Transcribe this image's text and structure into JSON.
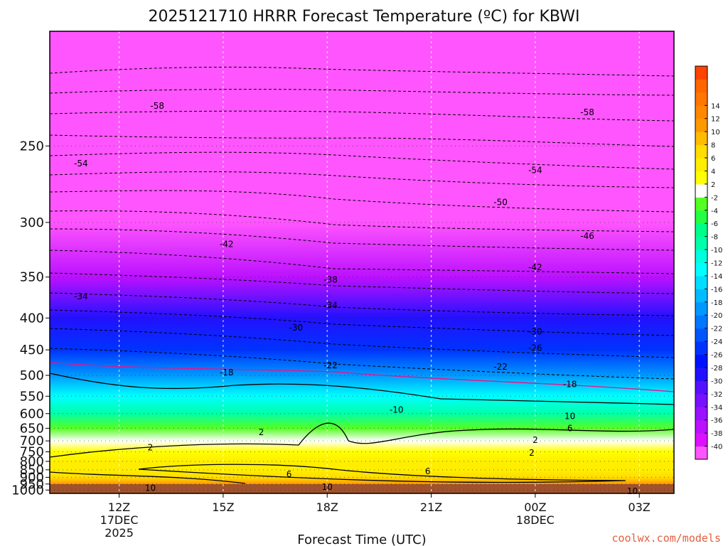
{
  "chart_data": {
    "type": "heatmap",
    "title": "2025121710 HRRR Forecast Temperature (ºC) for KBWI",
    "xlabel": "Forecast Time (UTC)",
    "ylabel": "",
    "credit": "coolwx.com/models",
    "x_ticks": [
      {
        "hour": 12,
        "label": "12Z",
        "sub1": "17DEC",
        "sub2": "2025"
      },
      {
        "hour": 15,
        "label": "15Z",
        "sub1": "",
        "sub2": ""
      },
      {
        "hour": 18,
        "label": "18Z",
        "sub1": "",
        "sub2": ""
      },
      {
        "hour": 21,
        "label": "21Z",
        "sub1": "",
        "sub2": ""
      },
      {
        "hour": 24,
        "label": "00Z",
        "sub1": "18DEC",
        "sub2": ""
      },
      {
        "hour": 27,
        "label": "03Z",
        "sub1": "",
        "sub2": ""
      }
    ],
    "xlim": [
      10,
      28
    ],
    "ylim": [
      1030,
      200
    ],
    "y_ticks": [
      250,
      300,
      350,
      400,
      450,
      500,
      550,
      600,
      650,
      700,
      750,
      800,
      850,
      900,
      950,
      1000
    ],
    "pressure_profile": [
      {
        "p": 200,
        "t": -58
      },
      {
        "p": 250,
        "t": -55
      },
      {
        "p": 300,
        "t": -46
      },
      {
        "p": 350,
        "t": -37
      },
      {
        "p": 400,
        "t": -30
      },
      {
        "p": 450,
        "t": -25
      },
      {
        "p": 500,
        "t": -20
      },
      {
        "p": 550,
        "t": -14
      },
      {
        "p": 600,
        "t": -9
      },
      {
        "p": 650,
        "t": -3
      },
      {
        "p": 700,
        "t": 1.5
      },
      {
        "p": 750,
        "t": 3
      },
      {
        "p": 800,
        "t": 4
      },
      {
        "p": 850,
        "t": 5
      },
      {
        "p": 900,
        "t": 7
      },
      {
        "p": 950,
        "t": 10
      },
      {
        "p": 1000,
        "t": 11
      }
    ],
    "colorbar": {
      "colors": [
        "#ff55ff",
        "#dd11ff",
        "#bb11ff",
        "#9911ff",
        "#7711ff",
        "#5511ff",
        "#2211ff",
        "#0011ff",
        "#0033ff",
        "#0055ff",
        "#0077ff",
        "#0099ff",
        "#00bbff",
        "#00ddff",
        "#00ffff",
        "#00ffdd",
        "#00ffaa",
        "#00ff88",
        "#22ff44",
        "#55ff22",
        "#ffffff",
        "#ffff00",
        "#ffee00",
        "#ffdd00",
        "#ffbb00",
        "#ff9900",
        "#ff8800",
        "#ff7700",
        "#ff6600",
        "#ff4400"
      ],
      "labels": [
        "-40",
        "-38",
        "-36",
        "-34",
        "-32",
        "-30",
        "-28",
        "-26",
        "-24",
        "-22",
        "-20",
        "-18",
        "-16",
        "-14",
        "-12",
        "-10",
        "-8",
        "-6",
        "-4",
        "-2",
        "2",
        "4",
        "6",
        "8",
        "10",
        "12",
        "14"
      ]
    },
    "contour_labels": [
      {
        "hour": 13.1,
        "p": 230,
        "text": "-58"
      },
      {
        "hour": 25.5,
        "p": 233,
        "text": "-58"
      },
      {
        "hour": 10.9,
        "p": 260,
        "text": "-54"
      },
      {
        "hour": 24,
        "p": 264,
        "text": "-54"
      },
      {
        "hour": 23,
        "p": 285,
        "text": "-50"
      },
      {
        "hour": 15.1,
        "p": 318,
        "text": "-42"
      },
      {
        "hour": 25.5,
        "p": 311,
        "text": "-46"
      },
      {
        "hour": 24,
        "p": 340,
        "text": "-42"
      },
      {
        "hour": 18.1,
        "p": 353,
        "text": "-38"
      },
      {
        "hour": 10.9,
        "p": 372,
        "text": "-34"
      },
      {
        "hour": 18.1,
        "p": 383,
        "text": "-34"
      },
      {
        "hour": 17.1,
        "p": 414,
        "text": "-30"
      },
      {
        "hour": 24,
        "p": 420,
        "text": "-30"
      },
      {
        "hour": 24,
        "p": 447,
        "text": "-26"
      },
      {
        "hour": 18.1,
        "p": 479,
        "text": "-22"
      },
      {
        "hour": 23,
        "p": 482,
        "text": "-22"
      },
      {
        "hour": 15.1,
        "p": 494,
        "text": "-18"
      },
      {
        "hour": 25,
        "p": 520,
        "text": "-18"
      },
      {
        "hour": 20,
        "p": 588,
        "text": "-10"
      },
      {
        "hour": 25,
        "p": 608,
        "text": "10"
      },
      {
        "hour": 25,
        "p": 650,
        "text": "6"
      },
      {
        "hour": 16.1,
        "p": 665,
        "text": "2"
      },
      {
        "hour": 24,
        "p": 697,
        "text": "2"
      },
      {
        "hour": 12.9,
        "p": 730,
        "text": "2"
      },
      {
        "hour": 23.9,
        "p": 755,
        "text": "2"
      },
      {
        "hour": 16.9,
        "p": 878,
        "text": "6"
      },
      {
        "hour": 20.9,
        "p": 860,
        "text": "6"
      },
      {
        "hour": 12.9,
        "p": 984,
        "text": "10"
      },
      {
        "hour": 18,
        "p": 973,
        "text": "10"
      },
      {
        "hour": 26.8,
        "p": 1010,
        "text": "10"
      }
    ]
  }
}
